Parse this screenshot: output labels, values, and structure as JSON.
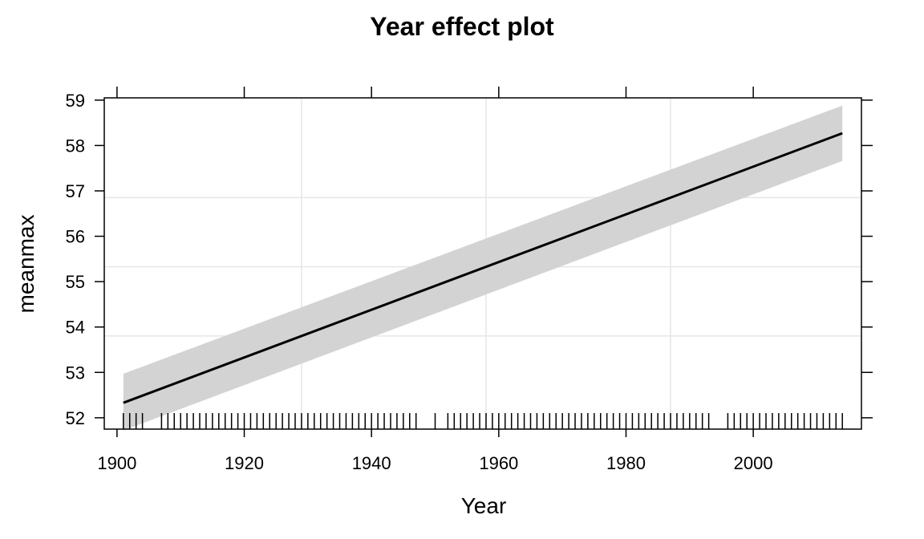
{
  "chart_data": {
    "type": "line",
    "title": "Year effect plot",
    "xlabel": "Year",
    "ylabel": "meanmax",
    "xlim": [
      1898,
      2017
    ],
    "ylim": [
      51.75,
      59.05
    ],
    "x_ticks": [
      1900,
      1920,
      1940,
      1960,
      1980,
      2000
    ],
    "y_ticks": [
      52,
      53,
      54,
      55,
      56,
      57,
      58,
      59
    ],
    "grid": true,
    "series": [
      {
        "x": [
          1901,
          2014
        ],
        "fit": [
          52.33,
          58.27
        ],
        "lower": [
          51.72,
          57.66
        ],
        "upper": [
          52.97,
          58.88
        ]
      }
    ],
    "rug_years": [
      1901,
      1902,
      1903,
      1904,
      1907,
      1908,
      1909,
      1910,
      1911,
      1912,
      1913,
      1914,
      1915,
      1916,
      1917,
      1918,
      1919,
      1920,
      1921,
      1922,
      1923,
      1924,
      1925,
      1926,
      1927,
      1928,
      1929,
      1930,
      1931,
      1932,
      1933,
      1934,
      1935,
      1936,
      1937,
      1938,
      1939,
      1940,
      1941,
      1942,
      1943,
      1944,
      1945,
      1946,
      1947,
      1950,
      1952,
      1953,
      1954,
      1955,
      1956,
      1957,
      1958,
      1959,
      1960,
      1961,
      1962,
      1963,
      1964,
      1965,
      1966,
      1967,
      1968,
      1969,
      1970,
      1971,
      1972,
      1973,
      1974,
      1975,
      1976,
      1977,
      1978,
      1979,
      1980,
      1981,
      1982,
      1983,
      1984,
      1985,
      1986,
      1987,
      1988,
      1989,
      1990,
      1991,
      1992,
      1993,
      1996,
      1997,
      1998,
      1999,
      2000,
      2001,
      2002,
      2003,
      2004,
      2005,
      2006,
      2007,
      2008,
      2009,
      2010,
      2011,
      2012,
      2013,
      2014
    ],
    "colors": {
      "line": "#000000",
      "band": "#d3d3d3",
      "grid": "#e6e6e6",
      "axis": "#000000"
    }
  }
}
